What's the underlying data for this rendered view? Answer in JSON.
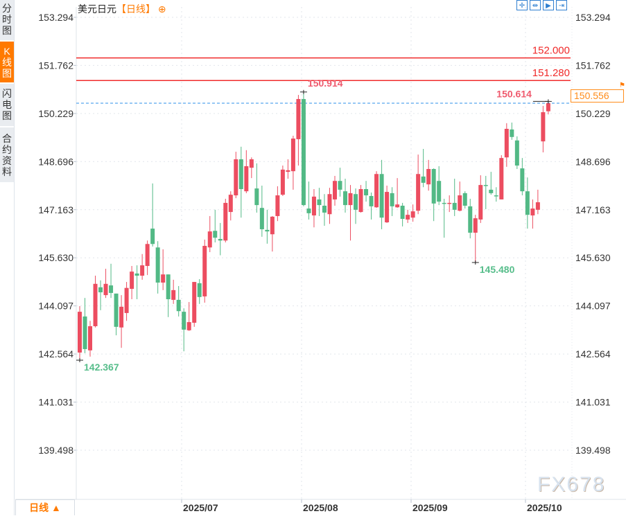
{
  "sidebar": {
    "tabs": [
      {
        "label": "分时图",
        "active": false
      },
      {
        "label": "K线图",
        "active": true
      },
      {
        "label": "闪电图",
        "active": false
      },
      {
        "label": "合约资料",
        "active": false
      }
    ]
  },
  "header": {
    "symbol": "美元日元",
    "interval": "【日线】",
    "zoom_icon": "circle-plus-icon"
  },
  "toolbar": {
    "icons": [
      "crosshair-icon",
      "zoom-range-icon",
      "play-forward-icon",
      "jump-to-end-icon"
    ]
  },
  "timeframe_button": "日线 ▲",
  "watermark": "FX678",
  "last_price_label": "150.556",
  "colors": {
    "up": "#ec4d60",
    "down": "#52b985",
    "level_line": "#f02a2a",
    "last_line": "#2b8fe8",
    "accent": "#ff7a00"
  },
  "chart_data": {
    "type": "candlestick",
    "title": "美元日元",
    "y_ticks": [
      "153.294",
      "151.762",
      "150.229",
      "148.696",
      "147.163",
      "145.630",
      "144.097",
      "142.564",
      "141.031",
      "139.498"
    ],
    "ylim": [
      139.498,
      153.294
    ],
    "grid": true,
    "x_ticks": [
      {
        "label": "2025/07",
        "index": 20
      },
      {
        "label": "2025/08",
        "index": 43
      },
      {
        "label": "2025/09",
        "index": 64
      },
      {
        "label": "2025/10",
        "index": 86
      }
    ],
    "horizontal_lines": [
      {
        "value": 152.0,
        "label": "152.000"
      },
      {
        "value": 151.28,
        "label": "151.280"
      }
    ],
    "last_price": 150.556,
    "annotations": [
      {
        "label": "150.914",
        "value": 150.914,
        "index": 43,
        "kind": "high"
      },
      {
        "label": "150.614",
        "value": 150.614,
        "index": 90,
        "kind": "high"
      },
      {
        "label": "145.480",
        "value": 145.48,
        "index": 76,
        "kind": "low"
      },
      {
        "label": "142.367",
        "value": 142.367,
        "index": 0,
        "kind": "low"
      }
    ],
    "ohlc_order": [
      "open",
      "high",
      "low",
      "close"
    ],
    "candles": [
      [
        142.61,
        144.09,
        142.37,
        143.91
      ],
      [
        143.76,
        144.35,
        142.59,
        142.72
      ],
      [
        142.68,
        143.62,
        142.48,
        143.45
      ],
      [
        143.45,
        145.06,
        143.41,
        144.8
      ],
      [
        144.69,
        144.91,
        143.96,
        144.53
      ],
      [
        144.44,
        145.28,
        144.35,
        144.8
      ],
      [
        144.75,
        145.44,
        144.35,
        144.51
      ],
      [
        144.49,
        144.49,
        143.16,
        143.43
      ],
      [
        143.41,
        144.44,
        142.76,
        144.07
      ],
      [
        143.87,
        144.86,
        143.62,
        144.67
      ],
      [
        144.64,
        145.37,
        144.31,
        145.19
      ],
      [
        145.13,
        145.39,
        144.31,
        145.06
      ],
      [
        145.06,
        145.75,
        144.93,
        145.39
      ],
      [
        145.37,
        146.18,
        145.08,
        146.07
      ],
      [
        146.56,
        148.0,
        145.99,
        146.07
      ],
      [
        145.96,
        146.16,
        144.49,
        144.84
      ],
      [
        144.84,
        145.9,
        144.6,
        145.1
      ],
      [
        145.1,
        145.1,
        143.74,
        144.31
      ],
      [
        144.29,
        144.93,
        144.16,
        144.6
      ],
      [
        144.29,
        144.73,
        143.76,
        143.93
      ],
      [
        143.91,
        144.02,
        142.65,
        143.34
      ],
      [
        143.32,
        144.22,
        143.3,
        143.58
      ],
      [
        143.56,
        144.86,
        143.43,
        144.86
      ],
      [
        144.82,
        144.95,
        144.16,
        144.38
      ],
      [
        144.4,
        146.21,
        144.2,
        146.01
      ],
      [
        145.96,
        146.96,
        145.81,
        146.47
      ],
      [
        146.49,
        147.16,
        146.12,
        146.27
      ],
      [
        146.23,
        146.74,
        145.71,
        146.18
      ],
      [
        146.18,
        147.51,
        146.12,
        147.38
      ],
      [
        147.09,
        147.75,
        146.82,
        147.64
      ],
      [
        147.62,
        149.01,
        147.53,
        148.77
      ],
      [
        148.77,
        149.17,
        146.91,
        147.82
      ],
      [
        147.75,
        149.06,
        147.69,
        148.55
      ],
      [
        148.5,
        148.83,
        148.17,
        148.77
      ],
      [
        147.84,
        148.64,
        147.07,
        147.31
      ],
      [
        147.22,
        147.93,
        146.3,
        146.54
      ],
      [
        146.52,
        147.16,
        146.08,
        146.47
      ],
      [
        146.38,
        146.96,
        145.83,
        146.94
      ],
      [
        146.96,
        147.91,
        146.8,
        147.62
      ],
      [
        147.64,
        148.57,
        147.6,
        148.44
      ],
      [
        148.37,
        148.77,
        148.15,
        148.42
      ],
      [
        148.39,
        149.52,
        147.8,
        149.43
      ],
      [
        149.41,
        150.82,
        148.57,
        150.69
      ],
      [
        150.69,
        150.914,
        147.27,
        147.31
      ],
      [
        147.2,
        148.06,
        146.85,
        147.05
      ],
      [
        146.98,
        147.82,
        146.6,
        147.58
      ],
      [
        147.49,
        147.86,
        146.96,
        147.31
      ],
      [
        147.29,
        147.66,
        146.65,
        147.07
      ],
      [
        147.02,
        147.86,
        146.71,
        147.66
      ],
      [
        147.49,
        148.24,
        147.29,
        148.08
      ],
      [
        148.08,
        148.5,
        147.58,
        147.8
      ],
      [
        147.75,
        148.15,
        147.07,
        147.31
      ],
      [
        147.31,
        147.95,
        146.18,
        147.69
      ],
      [
        147.66,
        147.84,
        146.71,
        147.16
      ],
      [
        147.09,
        147.95,
        147.07,
        147.82
      ],
      [
        147.82,
        148.08,
        147.42,
        147.62
      ],
      [
        147.6,
        147.71,
        146.85,
        147.27
      ],
      [
        147.24,
        148.39,
        147.22,
        148.3
      ],
      [
        148.3,
        148.75,
        146.54,
        146.91
      ],
      [
        146.76,
        147.93,
        146.74,
        147.73
      ],
      [
        147.69,
        147.88,
        146.96,
        147.27
      ],
      [
        147.24,
        148.17,
        147.22,
        147.33
      ],
      [
        147.29,
        147.38,
        146.63,
        146.87
      ],
      [
        146.85,
        147.16,
        146.74,
        147.0
      ],
      [
        146.91,
        147.33,
        146.78,
        147.11
      ],
      [
        147.13,
        148.92,
        147.02,
        148.3
      ],
      [
        148.22,
        149.1,
        147.88,
        148.02
      ],
      [
        147.97,
        148.75,
        147.77,
        148.46
      ],
      [
        148.46,
        148.48,
        146.8,
        147.36
      ],
      [
        148.08,
        148.55,
        147.31,
        147.42
      ],
      [
        147.38,
        147.51,
        146.27,
        147.36
      ],
      [
        147.36,
        147.62,
        147.09,
        147.38
      ],
      [
        147.38,
        148.15,
        146.96,
        147.16
      ],
      [
        147.13,
        148.06,
        147.11,
        147.62
      ],
      [
        147.69,
        147.75,
        147.2,
        147.29
      ],
      [
        147.27,
        147.51,
        146.25,
        146.43
      ],
      [
        146.43,
        147.0,
        145.48,
        146.89
      ],
      [
        146.85,
        148.26,
        146.74,
        147.95
      ],
      [
        147.95,
        148.24,
        147.18,
        147.93
      ],
      [
        147.8,
        148.37,
        147.64,
        147.69
      ],
      [
        147.62,
        147.88,
        147.42,
        147.6
      ],
      [
        147.49,
        148.9,
        147.49,
        148.81
      ],
      [
        148.83,
        149.92,
        148.53,
        149.74
      ],
      [
        149.72,
        149.94,
        149.39,
        149.48
      ],
      [
        149.37,
        149.5,
        148.46,
        148.57
      ],
      [
        148.48,
        148.81,
        147.62,
        147.75
      ],
      [
        147.75,
        148.19,
        146.56,
        147.0
      ],
      [
        146.98,
        147.49,
        146.56,
        147.2
      ],
      [
        147.16,
        147.8,
        147.02,
        147.4
      ],
      [
        149.34,
        150.47,
        148.99,
        150.27
      ],
      [
        150.3,
        150.614,
        150.2,
        150.556
      ]
    ]
  }
}
